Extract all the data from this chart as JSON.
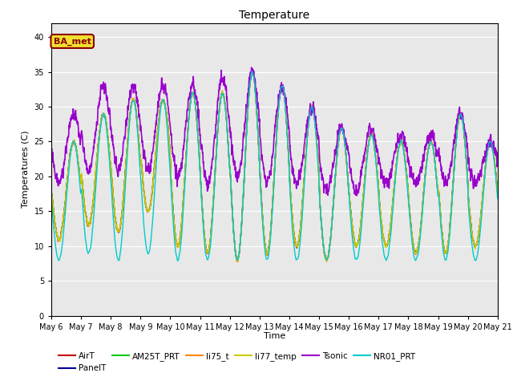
{
  "title": "Temperature",
  "ylabel": "Temperatures (C)",
  "xlabel": "Time",
  "ylim": [
    0,
    42
  ],
  "yticks": [
    0,
    5,
    10,
    15,
    20,
    25,
    30,
    35,
    40
  ],
  "annotation_text": "BA_met",
  "bg_color": "#e8e8e8",
  "series": {
    "AirT": {
      "color": "#cc0000",
      "lw": 1.0
    },
    "PanelT": {
      "color": "#000099",
      "lw": 1.0
    },
    "AM25T_PRT": {
      "color": "#00cc00",
      "lw": 1.0
    },
    "li75_t": {
      "color": "#ff8800",
      "lw": 1.0
    },
    "li77_temp": {
      "color": "#cccc00",
      "lw": 1.0
    },
    "Tsonic": {
      "color": "#9900cc",
      "lw": 1.2
    },
    "NR01_PRT": {
      "color": "#00cccc",
      "lw": 1.0
    }
  },
  "legend_order": [
    "AirT",
    "PanelT",
    "AM25T_PRT",
    "li75_t",
    "li77_temp",
    "Tsonic",
    "NR01_PRT"
  ],
  "x_tick_labels": [
    "May 6",
    "May 7",
    "May 8",
    "May 9",
    "May 10",
    "May 11",
    "May 12",
    "May 13",
    "May 14",
    "May 15",
    "May 16",
    "May 17",
    "May 18",
    "May 19",
    "May 20",
    "May 21"
  ],
  "n_days": 15,
  "pts_per_day": 144,
  "day_peaks": [
    25,
    29,
    31,
    31,
    32,
    32,
    35,
    33,
    30,
    27,
    26,
    25,
    25,
    29,
    25
  ],
  "night_mins": [
    11,
    13,
    12,
    15,
    10,
    9,
    8,
    9,
    10,
    8,
    10,
    10,
    9,
    9,
    10
  ],
  "tsonic_day": [
    29,
    33,
    33,
    33,
    33,
    34,
    35,
    33,
    30,
    27,
    27,
    26,
    26,
    29,
    25
  ],
  "tsonic_night": [
    19,
    21,
    21,
    21,
    20,
    19,
    20,
    19,
    19,
    18,
    18,
    19,
    19,
    19,
    19
  ],
  "nr01_day": [
    25,
    29,
    31,
    31,
    32,
    32,
    35,
    33,
    30,
    27,
    26,
    25,
    25,
    29,
    25
  ],
  "nr01_night": [
    8,
    9,
    8,
    9,
    8,
    8,
    8,
    8,
    8,
    8,
    8,
    8,
    8,
    8,
    8
  ]
}
